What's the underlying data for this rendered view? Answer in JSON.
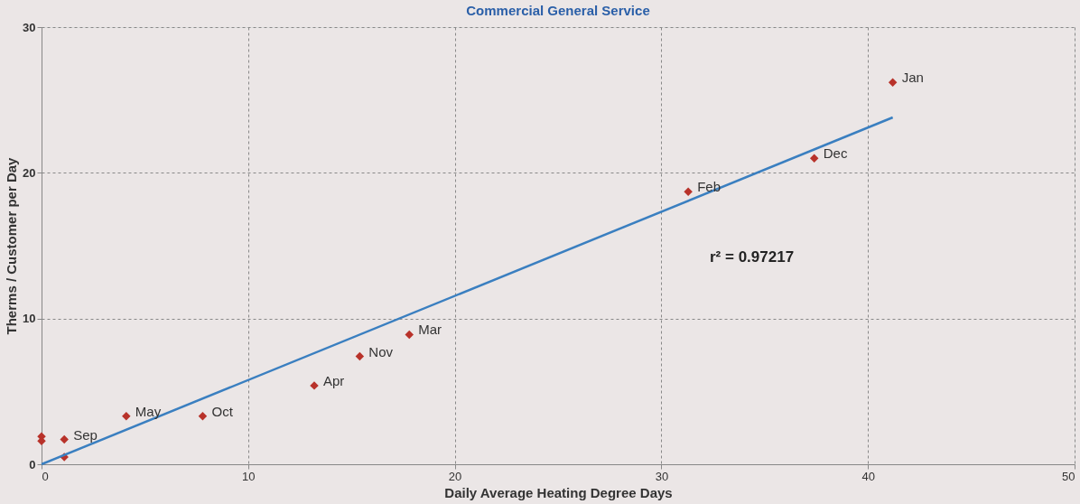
{
  "chart_data": {
    "type": "scatter",
    "title": "Commercial General Service",
    "xlabel": "Daily Average Heating Degree Days",
    "ylabel": "Therms / Customer per Day",
    "xlim": [
      0,
      50
    ],
    "xticks": [
      0,
      10,
      20,
      30,
      40,
      50
    ],
    "ylim": [
      0,
      30
    ],
    "yticks": [
      0,
      10,
      20,
      30
    ],
    "grid": true,
    "marker": "diamond",
    "series": [
      {
        "color": "#b8322a",
        "x": [
          41.2,
          37.4,
          31.3,
          17.8,
          15.4,
          13.2,
          7.8,
          4.1,
          1.1,
          1.1,
          0,
          0
        ],
        "values": [
          26.2,
          21.0,
          18.7,
          8.9,
          7.4,
          5.4,
          3.3,
          3.3,
          1.7,
          0.5,
          1.9,
          1.6
        ]
      },
      {
        "type": "line",
        "color": "#3a7fc0",
        "marker": "none",
        "line_style": "solid",
        "x": [
          0,
          41.2
        ],
        "values": [
          0,
          23.8
        ]
      }
    ],
    "annotations": [
      {
        "text": "Jan",
        "x": 41.2,
        "y": 26.2
      },
      {
        "text": "Dec",
        "x": 37.4,
        "y": 21.0
      },
      {
        "text": "Feb",
        "x": 31.3,
        "y": 18.7
      },
      {
        "text": "Mar",
        "x": 17.8,
        "y": 8.9
      },
      {
        "text": "Nov",
        "x": 15.4,
        "y": 7.4
      },
      {
        "text": "Apr",
        "x": 13.2,
        "y": 5.4
      },
      {
        "text": "Oct",
        "x": 7.8,
        "y": 3.3
      },
      {
        "text": "May",
        "x": 4.1,
        "y": 3.3
      },
      {
        "text": "Sep",
        "x": 1.1,
        "y": 1.7
      },
      "r² = 0.97217"
    ]
  }
}
